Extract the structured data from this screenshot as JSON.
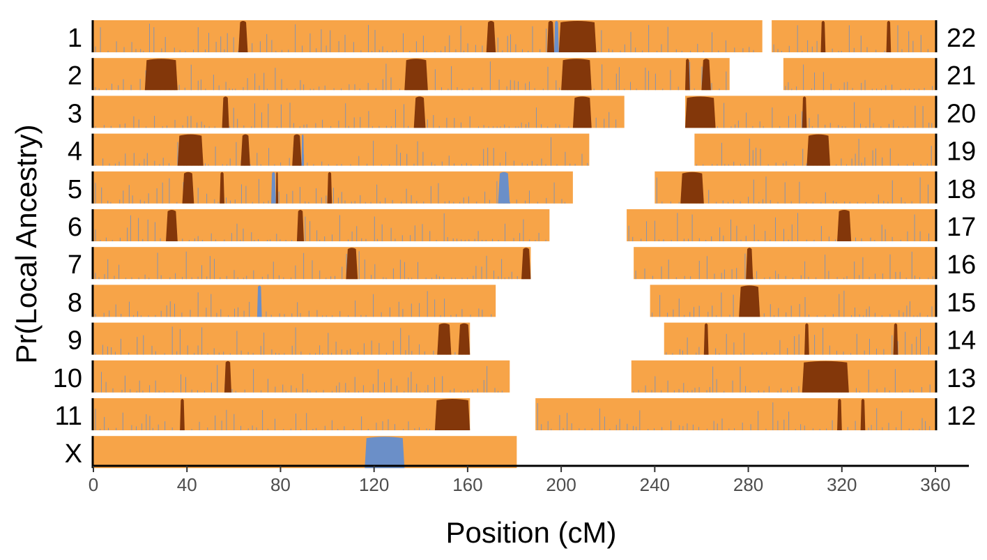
{
  "chart_data": {
    "type": "area",
    "subtype": "karyogram-local-ancestry",
    "xlabel": "Position (cM)",
    "ylabel": "Pr(Local Ancestry)",
    "xlim": [
      0,
      360
    ],
    "x_ticks": [
      0,
      40,
      80,
      120,
      160,
      200,
      240,
      280,
      320,
      360
    ],
    "grid": false,
    "legend": "none",
    "colors": {
      "orange": "#f7a448",
      "brown": "#83370a",
      "blue": "#6b8fc8",
      "axis": "#000000"
    },
    "rows": [
      {
        "left": {
          "chrom": "1",
          "length_cM": 286
        },
        "right": {
          "chrom": "22",
          "start_cM": 290
        }
      },
      {
        "left": {
          "chrom": "2",
          "length_cM": 272
        },
        "right": {
          "chrom": "21",
          "start_cM": 295
        }
      },
      {
        "left": {
          "chrom": "3",
          "length_cM": 227
        },
        "right": {
          "chrom": "20",
          "start_cM": 253
        }
      },
      {
        "left": {
          "chrom": "4",
          "length_cM": 212
        },
        "right": {
          "chrom": "19",
          "start_cM": 257
        }
      },
      {
        "left": {
          "chrom": "5",
          "length_cM": 205
        },
        "right": {
          "chrom": "18",
          "start_cM": 240
        }
      },
      {
        "left": {
          "chrom": "6",
          "length_cM": 195
        },
        "right": {
          "chrom": "17",
          "start_cM": 228
        }
      },
      {
        "left": {
          "chrom": "7",
          "length_cM": 187
        },
        "right": {
          "chrom": "16",
          "start_cM": 231
        }
      },
      {
        "left": {
          "chrom": "8",
          "length_cM": 172
        },
        "right": {
          "chrom": "15",
          "start_cM": 238
        }
      },
      {
        "left": {
          "chrom": "9",
          "length_cM": 161
        },
        "right": {
          "chrom": "14",
          "start_cM": 244
        }
      },
      {
        "left": {
          "chrom": "10",
          "length_cM": 178
        },
        "right": {
          "chrom": "13",
          "start_cM": 230
        }
      },
      {
        "left": {
          "chrom": "11",
          "length_cM": 161
        },
        "right": {
          "chrom": "12",
          "start_cM": 189
        }
      },
      {
        "left": {
          "chrom": "X",
          "length_cM": 181
        },
        "right": null
      }
    ],
    "segments": [
      {
        "row": 0,
        "ancestry": "brown",
        "from": 62,
        "to": 66
      },
      {
        "row": 0,
        "ancestry": "brown",
        "from": 168,
        "to": 172
      },
      {
        "row": 0,
        "ancestry": "brown",
        "from": 194,
        "to": 197
      },
      {
        "row": 0,
        "ancestry": "blue",
        "from": 197,
        "to": 199
      },
      {
        "row": 0,
        "ancestry": "brown",
        "from": 199,
        "to": 215
      },
      {
        "row": 0,
        "ancestry": "brown",
        "from": 311,
        "to": 313
      },
      {
        "row": 0,
        "ancestry": "brown",
        "from": 339,
        "to": 341
      },
      {
        "row": 1,
        "ancestry": "brown",
        "from": 22,
        "to": 36
      },
      {
        "row": 1,
        "ancestry": "brown",
        "from": 133,
        "to": 143
      },
      {
        "row": 1,
        "ancestry": "brown",
        "from": 200,
        "to": 213
      },
      {
        "row": 1,
        "ancestry": "brown",
        "from": 253,
        "to": 255
      },
      {
        "row": 1,
        "ancestry": "brown",
        "from": 260,
        "to": 264
      },
      {
        "row": 2,
        "ancestry": "brown",
        "from": 55,
        "to": 58
      },
      {
        "row": 2,
        "ancestry": "brown",
        "from": 137,
        "to": 142
      },
      {
        "row": 2,
        "ancestry": "brown",
        "from": 205,
        "to": 213
      },
      {
        "row": 2,
        "ancestry": "brown",
        "from": 253,
        "to": 266
      },
      {
        "row": 2,
        "ancestry": "brown",
        "from": 303,
        "to": 305
      },
      {
        "row": 3,
        "ancestry": "brown",
        "from": 36,
        "to": 47
      },
      {
        "row": 3,
        "ancestry": "brown",
        "from": 63,
        "to": 67
      },
      {
        "row": 3,
        "ancestry": "brown",
        "from": 85,
        "to": 89
      },
      {
        "row": 3,
        "ancestry": "blue",
        "from": 89,
        "to": 90
      },
      {
        "row": 3,
        "ancestry": "brown",
        "from": 305,
        "to": 315
      },
      {
        "row": 4,
        "ancestry": "brown",
        "from": 38,
        "to": 43
      },
      {
        "row": 4,
        "ancestry": "brown",
        "from": 54,
        "to": 56
      },
      {
        "row": 4,
        "ancestry": "blue",
        "from": 76,
        "to": 78
      },
      {
        "row": 4,
        "ancestry": "brown",
        "from": 78,
        "to": 79
      },
      {
        "row": 4,
        "ancestry": "brown",
        "from": 100,
        "to": 102
      },
      {
        "row": 4,
        "ancestry": "blue",
        "from": 173,
        "to": 178
      },
      {
        "row": 4,
        "ancestry": "brown",
        "from": 251,
        "to": 261
      },
      {
        "row": 5,
        "ancestry": "brown",
        "from": 31,
        "to": 36
      },
      {
        "row": 5,
        "ancestry": "brown",
        "from": 87,
        "to": 90
      },
      {
        "row": 5,
        "ancestry": "brown",
        "from": 318,
        "to": 324
      },
      {
        "row": 6,
        "ancestry": "brown",
        "from": 108,
        "to": 113
      },
      {
        "row": 6,
        "ancestry": "brown",
        "from": 183,
        "to": 187
      },
      {
        "row": 6,
        "ancestry": "brown",
        "from": 279,
        "to": 282
      },
      {
        "row": 7,
        "ancestry": "blue",
        "from": 70,
        "to": 72
      },
      {
        "row": 7,
        "ancestry": "brown",
        "from": 276,
        "to": 285
      },
      {
        "row": 8,
        "ancestry": "brown",
        "from": 147,
        "to": 153
      },
      {
        "row": 8,
        "ancestry": "brown",
        "from": 156,
        "to": 161
      },
      {
        "row": 8,
        "ancestry": "brown",
        "from": 261,
        "to": 263
      },
      {
        "row": 8,
        "ancestry": "brown",
        "from": 304,
        "to": 306
      },
      {
        "row": 8,
        "ancestry": "brown",
        "from": 342,
        "to": 344
      },
      {
        "row": 9,
        "ancestry": "brown",
        "from": 56,
        "to": 59
      },
      {
        "row": 9,
        "ancestry": "brown",
        "from": 303,
        "to": 323
      },
      {
        "row": 10,
        "ancestry": "brown",
        "from": 37,
        "to": 39
      },
      {
        "row": 10,
        "ancestry": "brown",
        "from": 146,
        "to": 161
      },
      {
        "row": 10,
        "ancestry": "brown",
        "from": 318,
        "to": 320
      },
      {
        "row": 10,
        "ancestry": "brown",
        "from": 328,
        "to": 330
      },
      {
        "row": 11,
        "ancestry": "blue",
        "from": 116,
        "to": 133
      }
    ]
  }
}
